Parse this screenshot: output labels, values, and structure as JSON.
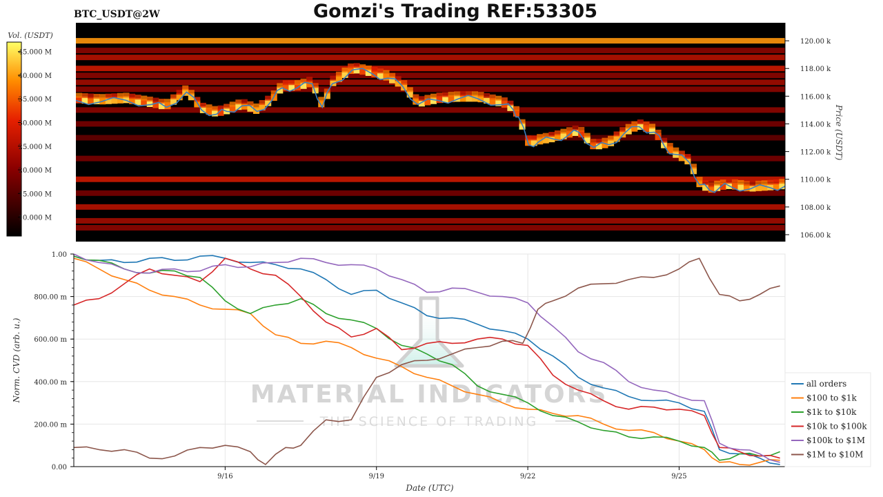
{
  "header": {
    "symbol_label": "BTC_USDT@2W",
    "title": "Gomzi's Trading REF:53305"
  },
  "watermark": {
    "line1": "MATERIAL INDICATORS",
    "line2": "THE SCIENCE OF TRADING"
  },
  "colors": {
    "heatmap_background": "#000000",
    "price_line": "#3a7fc1",
    "all_orders": "#1f77b4",
    "orders_100_1k": "#ff7f0e",
    "orders_1k_10k": "#2ca02c",
    "orders_10k_100k": "#d62728",
    "orders_100k_1m": "#9467bd",
    "orders_1m_10m": "#8c564b"
  },
  "chart_data": [
    {
      "type": "heatmap",
      "name": "orderbook-heatmap",
      "colorbar": {
        "title": "Vol. (USDT)",
        "ticks": [
          "45.000 M",
          "40.000 M",
          "35.000 M",
          "30.000 M",
          "25.000 M",
          "20.000 M",
          "15.000 M",
          "10.000 M"
        ],
        "tick_values": [
          45,
          40,
          35,
          30,
          25,
          20,
          15,
          10
        ],
        "range": [
          6,
          47
        ]
      },
      "ylabel": "Price (USDT)",
      "yticks": [
        "120.00 k",
        "118.00 k",
        "116.00 k",
        "114.00 k",
        "112.00 k",
        "110.00 k",
        "108.00 k",
        "106.00 k"
      ],
      "ytick_values": [
        120,
        118,
        116,
        114,
        112,
        110,
        108,
        106
      ],
      "ylim": [
        105.5,
        121.3
      ],
      "xlim": [
        13.0,
        27.1
      ],
      "liquidity_bands": [
        {
          "price": 120.0,
          "intensity": 0.8
        },
        {
          "price": 119.3,
          "intensity": 0.35
        },
        {
          "price": 118.8,
          "intensity": 0.45
        },
        {
          "price": 118.0,
          "intensity": 0.5
        },
        {
          "price": 117.5,
          "intensity": 0.35
        },
        {
          "price": 117.0,
          "intensity": 0.4
        },
        {
          "price": 116.5,
          "intensity": 0.35
        },
        {
          "price": 115.0,
          "intensity": 0.35
        },
        {
          "price": 114.0,
          "intensity": 0.3
        },
        {
          "price": 113.0,
          "intensity": 0.25
        },
        {
          "price": 111.5,
          "intensity": 0.3
        },
        {
          "price": 110.0,
          "intensity": 0.5
        },
        {
          "price": 109.0,
          "intensity": 0.3
        },
        {
          "price": 108.0,
          "intensity": 0.45
        },
        {
          "price": 107.0,
          "intensity": 0.4
        },
        {
          "price": 106.5,
          "intensity": 0.35
        }
      ],
      "price_series": {
        "name": "price",
        "x": [
          13.0,
          13.5,
          14.0,
          14.5,
          14.8,
          15.2,
          15.5,
          15.8,
          16.0,
          16.3,
          16.6,
          16.9,
          17.1,
          17.4,
          17.7,
          17.9,
          18.1,
          18.5,
          18.9,
          19.2,
          19.5,
          19.8,
          20.2,
          20.6,
          21.0,
          21.5,
          21.7,
          21.8,
          22.0,
          22.2,
          22.5,
          22.8,
          23.0,
          23.3,
          23.6,
          23.9,
          24.2,
          24.5,
          24.7,
          24.9,
          25.2,
          25.4,
          25.6,
          25.8,
          26.0,
          26.4,
          26.8,
          27.1
        ],
        "y": [
          115.7,
          115.6,
          115.7,
          115.4,
          115.2,
          116.3,
          115.0,
          114.7,
          114.9,
          115.3,
          114.9,
          115.7,
          116.6,
          116.6,
          116.9,
          115.2,
          116.9,
          117.9,
          117.6,
          117.3,
          116.7,
          115.4,
          115.7,
          115.8,
          115.8,
          115.4,
          115.0,
          114.5,
          112.5,
          112.7,
          112.9,
          113.2,
          113.4,
          112.3,
          112.5,
          113.3,
          113.8,
          113.4,
          112.4,
          111.8,
          111.2,
          109.6,
          109.2,
          109.4,
          109.5,
          109.3,
          109.4,
          109.5
        ]
      }
    },
    {
      "type": "line",
      "name": "normalized-cvd",
      "xlabel": "Date (UTC)",
      "ylabel": "Norm. CVD (arb. u.)",
      "xticks": [
        "9/16",
        "9/19",
        "9/22",
        "9/25"
      ],
      "xtick_values": [
        16,
        19,
        22,
        25
      ],
      "yticks": [
        "1.00",
        "800.00 m",
        "600.00 m",
        "400.00 m",
        "200.00 m",
        "0.00"
      ],
      "ytick_values": [
        1.0,
        0.8,
        0.6,
        0.4,
        0.2,
        0.0
      ],
      "ylim": [
        0.0,
        1.0
      ],
      "xlim": [
        13.0,
        27.1
      ],
      "grid": true,
      "legend_position": "right",
      "series": [
        {
          "name": "all orders",
          "color_key": "all_orders",
          "x": [
            13.0,
            13.5,
            14.0,
            14.5,
            15.0,
            15.5,
            16.0,
            16.5,
            17.0,
            17.5,
            18.0,
            18.5,
            19.0,
            19.5,
            20.0,
            20.5,
            21.0,
            21.5,
            22.0,
            22.5,
            23.0,
            23.5,
            24.0,
            24.5,
            25.0,
            25.5,
            25.8,
            26.2,
            26.6,
            27.0
          ],
          "y": [
            0.99,
            0.97,
            0.96,
            0.98,
            0.97,
            0.99,
            0.98,
            0.96,
            0.95,
            0.93,
            0.88,
            0.81,
            0.83,
            0.77,
            0.71,
            0.7,
            0.67,
            0.64,
            0.6,
            0.52,
            0.42,
            0.37,
            0.33,
            0.31,
            0.3,
            0.26,
            0.08,
            0.06,
            0.04,
            0.01
          ]
        },
        {
          "name": "$100 to $1k",
          "color_key": "orders_100_1k",
          "x": [
            13.0,
            13.5,
            14.0,
            14.5,
            15.0,
            15.5,
            16.0,
            16.5,
            17.0,
            17.5,
            18.0,
            18.5,
            19.0,
            19.5,
            20.0,
            20.5,
            21.0,
            21.5,
            22.0,
            22.5,
            23.0,
            23.5,
            24.0,
            24.5,
            25.0,
            25.5,
            25.8,
            26.2,
            26.6,
            27.0
          ],
          "y": [
            0.98,
            0.93,
            0.88,
            0.83,
            0.8,
            0.76,
            0.74,
            0.72,
            0.62,
            0.58,
            0.59,
            0.56,
            0.51,
            0.47,
            0.42,
            0.38,
            0.34,
            0.3,
            0.27,
            0.25,
            0.24,
            0.2,
            0.17,
            0.16,
            0.12,
            0.08,
            0.02,
            0.01,
            0.02,
            0.03
          ]
        },
        {
          "name": "$1k to $10k",
          "color_key": "orders_1k_10k",
          "x": [
            13.0,
            13.5,
            14.0,
            14.5,
            15.0,
            15.5,
            16.0,
            16.5,
            17.0,
            17.5,
            18.0,
            18.5,
            19.0,
            19.5,
            20.0,
            20.5,
            21.0,
            21.5,
            22.0,
            22.5,
            23.0,
            23.5,
            24.0,
            24.5,
            25.0,
            25.5,
            25.8,
            26.2,
            26.6,
            27.0
          ],
          "y": [
            0.99,
            0.97,
            0.93,
            0.91,
            0.92,
            0.89,
            0.78,
            0.72,
            0.76,
            0.79,
            0.72,
            0.69,
            0.65,
            0.57,
            0.53,
            0.48,
            0.38,
            0.34,
            0.3,
            0.24,
            0.21,
            0.17,
            0.14,
            0.14,
            0.12,
            0.09,
            0.03,
            0.06,
            0.05,
            0.07
          ]
        },
        {
          "name": "$10k to $100k",
          "color_key": "orders_10k_100k",
          "x": [
            13.0,
            13.5,
            14.0,
            14.5,
            15.0,
            15.5,
            16.0,
            16.5,
            17.0,
            17.5,
            18.0,
            18.5,
            19.0,
            19.5,
            20.0,
            20.5,
            21.0,
            21.5,
            22.0,
            22.5,
            23.0,
            23.5,
            24.0,
            24.5,
            25.0,
            25.5,
            25.8,
            26.2,
            26.6,
            27.0
          ],
          "y": [
            0.76,
            0.79,
            0.86,
            0.93,
            0.9,
            0.87,
            0.98,
            0.93,
            0.9,
            0.8,
            0.68,
            0.61,
            0.65,
            0.55,
            0.58,
            0.58,
            0.6,
            0.6,
            0.57,
            0.43,
            0.36,
            0.31,
            0.27,
            0.28,
            0.27,
            0.24,
            0.09,
            0.07,
            0.05,
            0.04
          ]
        },
        {
          "name": "$100k to $1M",
          "color_key": "orders_100k_1m",
          "x": [
            13.0,
            13.5,
            14.0,
            14.5,
            15.0,
            15.5,
            16.0,
            16.5,
            17.0,
            17.5,
            18.0,
            18.5,
            19.0,
            19.5,
            20.0,
            20.5,
            21.0,
            21.5,
            22.0,
            22.5,
            23.0,
            23.5,
            24.0,
            24.5,
            25.0,
            25.5,
            25.8,
            26.2,
            26.6,
            27.0
          ],
          "y": [
            1.0,
            0.96,
            0.93,
            0.91,
            0.93,
            0.92,
            0.95,
            0.94,
            0.96,
            0.98,
            0.96,
            0.95,
            0.93,
            0.88,
            0.82,
            0.84,
            0.82,
            0.8,
            0.77,
            0.66,
            0.54,
            0.49,
            0.4,
            0.36,
            0.33,
            0.31,
            0.11,
            0.08,
            0.06,
            0.02
          ]
        },
        {
          "name": "$1M to $10M",
          "color_key": "orders_1m_10m",
          "x": [
            13.0,
            13.5,
            14.0,
            14.5,
            15.0,
            15.5,
            16.0,
            16.5,
            16.8,
            17.2,
            17.5,
            18.0,
            18.5,
            19.0,
            19.5,
            20.0,
            20.5,
            21.0,
            21.5,
            21.9,
            22.2,
            22.5,
            23.0,
            23.5,
            24.0,
            24.5,
            25.0,
            25.4,
            25.8,
            26.2,
            26.6,
            27.0
          ],
          "y": [
            0.09,
            0.08,
            0.08,
            0.04,
            0.05,
            0.09,
            0.1,
            0.07,
            0.01,
            0.09,
            0.1,
            0.22,
            0.22,
            0.42,
            0.48,
            0.5,
            0.53,
            0.56,
            0.59,
            0.58,
            0.74,
            0.78,
            0.84,
            0.86,
            0.88,
            0.89,
            0.93,
            0.98,
            0.81,
            0.78,
            0.81,
            0.85
          ]
        }
      ]
    }
  ]
}
